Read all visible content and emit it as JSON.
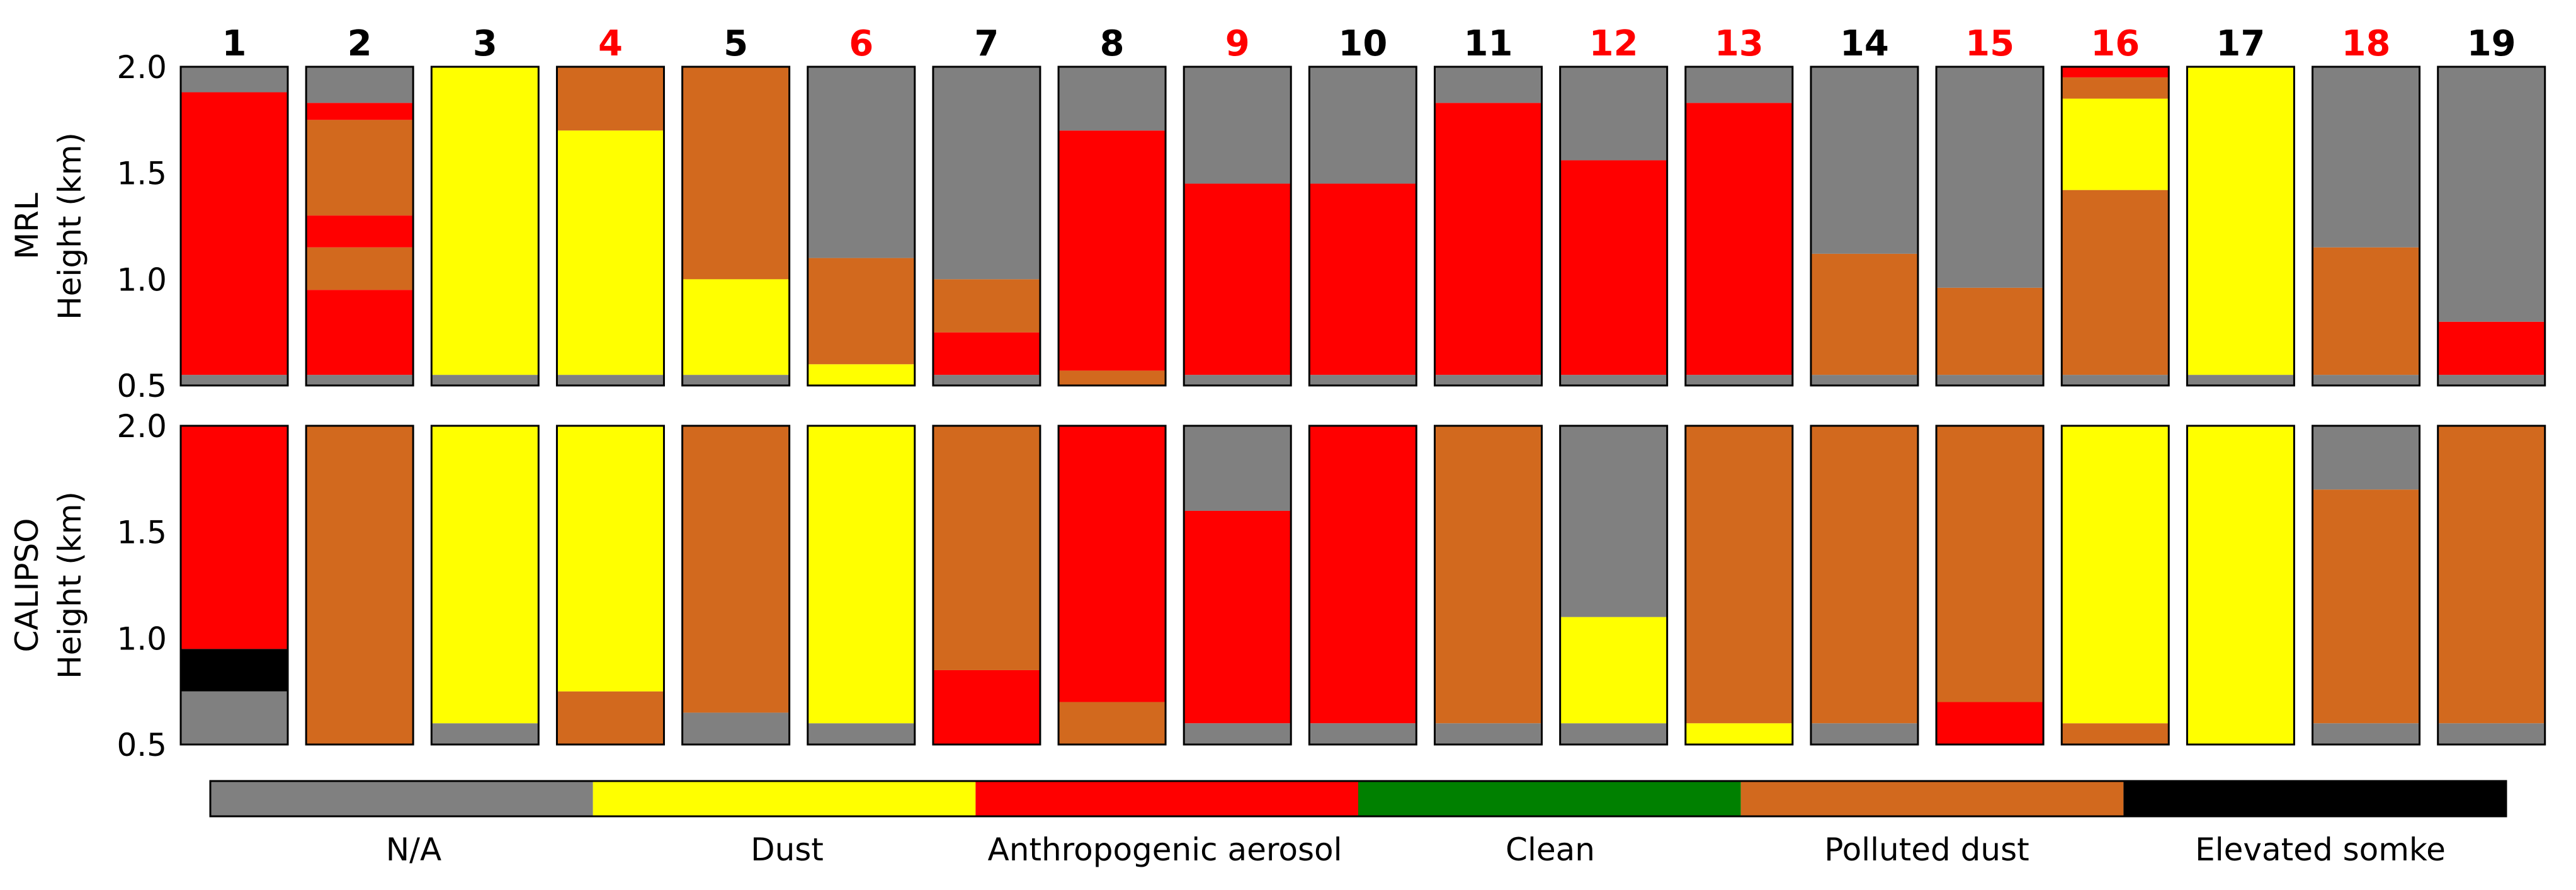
{
  "chart_data": {
    "type": "heatmap",
    "title": "",
    "colors": {
      "na": "#808080",
      "dust": "#ffff00",
      "anthro": "#ff0000",
      "clean": "#008000",
      "polluted": "#d2691e",
      "smoke": "#000000"
    },
    "legend": [
      {
        "key": "na",
        "label": "N/A"
      },
      {
        "key": "dust",
        "label": "Dust"
      },
      {
        "key": "anthro",
        "label": "Anthropogenic aerosol"
      },
      {
        "key": "clean",
        "label": "Clean"
      },
      {
        "key": "polluted",
        "label": "Polluted dust"
      },
      {
        "key": "smoke",
        "label": "Elevated somke"
      }
    ],
    "cases": [
      {
        "label": "1",
        "highlight": false
      },
      {
        "label": "2",
        "highlight": false
      },
      {
        "label": "3",
        "highlight": false
      },
      {
        "label": "4",
        "highlight": true
      },
      {
        "label": "5",
        "highlight": false
      },
      {
        "label": "6",
        "highlight": true
      },
      {
        "label": "7",
        "highlight": false
      },
      {
        "label": "8",
        "highlight": false
      },
      {
        "label": "9",
        "highlight": true
      },
      {
        "label": "10",
        "highlight": false
      },
      {
        "label": "11",
        "highlight": false
      },
      {
        "label": "12",
        "highlight": true
      },
      {
        "label": "13",
        "highlight": true
      },
      {
        "label": "14",
        "highlight": false
      },
      {
        "label": "15",
        "highlight": true
      },
      {
        "label": "16",
        "highlight": true
      },
      {
        "label": "17",
        "highlight": false
      },
      {
        "label": "18",
        "highlight": true
      },
      {
        "label": "19",
        "highlight": false
      }
    ],
    "highlight_color": "#ff0000",
    "normal_color": "#000000",
    "panels": [
      {
        "id": "mrl",
        "ylabel_lines": [
          "MRL",
          "Height (km)"
        ],
        "ylim": [
          0.5,
          2.0
        ],
        "yticks": [
          "0.5",
          "1.0",
          "1.5",
          "2.0"
        ],
        "ytick_values": [
          0.5,
          1.0,
          1.5,
          2.0
        ],
        "profiles": [
          [
            [
              "na",
              0.5,
              0.55
            ],
            [
              "anthro",
              0.55,
              1.88
            ],
            [
              "na",
              1.88,
              2.0
            ]
          ],
          [
            [
              "na",
              0.5,
              0.55
            ],
            [
              "anthro",
              0.55,
              0.95
            ],
            [
              "polluted",
              0.95,
              1.15
            ],
            [
              "anthro",
              1.15,
              1.3
            ],
            [
              "polluted",
              1.3,
              1.75
            ],
            [
              "anthro",
              1.75,
              1.83
            ],
            [
              "na",
              1.83,
              2.0
            ]
          ],
          [
            [
              "na",
              0.5,
              0.55
            ],
            [
              "dust",
              0.55,
              2.0
            ]
          ],
          [
            [
              "na",
              0.5,
              0.55
            ],
            [
              "dust",
              0.55,
              1.7
            ],
            [
              "polluted",
              1.7,
              2.0
            ]
          ],
          [
            [
              "na",
              0.5,
              0.55
            ],
            [
              "dust",
              0.55,
              1.0
            ],
            [
              "polluted",
              1.0,
              2.0
            ]
          ],
          [
            [
              "dust",
              0.5,
              0.6
            ],
            [
              "polluted",
              0.6,
              1.1
            ],
            [
              "na",
              1.1,
              2.0
            ]
          ],
          [
            [
              "na",
              0.5,
              0.55
            ],
            [
              "anthro",
              0.55,
              0.75
            ],
            [
              "polluted",
              0.75,
              1.0
            ],
            [
              "na",
              1.0,
              2.0
            ]
          ],
          [
            [
              "polluted",
              0.5,
              0.57
            ],
            [
              "anthro",
              0.57,
              1.7
            ],
            [
              "na",
              1.7,
              2.0
            ]
          ],
          [
            [
              "na",
              0.5,
              0.55
            ],
            [
              "anthro",
              0.55,
              1.45
            ],
            [
              "na",
              1.45,
              2.0
            ]
          ],
          [
            [
              "na",
              0.5,
              0.55
            ],
            [
              "anthro",
              0.55,
              1.45
            ],
            [
              "na",
              1.45,
              2.0
            ]
          ],
          [
            [
              "na",
              0.5,
              0.55
            ],
            [
              "anthro",
              0.55,
              1.83
            ],
            [
              "na",
              1.83,
              2.0
            ]
          ],
          [
            [
              "na",
              0.5,
              0.55
            ],
            [
              "anthro",
              0.55,
              1.56
            ],
            [
              "na",
              1.56,
              2.0
            ]
          ],
          [
            [
              "na",
              0.5,
              0.55
            ],
            [
              "anthro",
              0.55,
              1.83
            ],
            [
              "na",
              1.83,
              2.0
            ]
          ],
          [
            [
              "na",
              0.5,
              0.55
            ],
            [
              "polluted",
              0.55,
              1.12
            ],
            [
              "na",
              1.12,
              2.0
            ]
          ],
          [
            [
              "na",
              0.5,
              0.55
            ],
            [
              "polluted",
              0.55,
              0.96
            ],
            [
              "na",
              0.96,
              2.0
            ]
          ],
          [
            [
              "na",
              0.5,
              0.55
            ],
            [
              "polluted",
              0.55,
              1.42
            ],
            [
              "dust",
              1.42,
              1.85
            ],
            [
              "polluted",
              1.85,
              1.95
            ],
            [
              "anthro",
              1.95,
              2.0
            ]
          ],
          [
            [
              "na",
              0.5,
              0.55
            ],
            [
              "dust",
              0.55,
              2.0
            ]
          ],
          [
            [
              "na",
              0.5,
              0.55
            ],
            [
              "polluted",
              0.55,
              1.15
            ],
            [
              "na",
              1.15,
              2.0
            ]
          ],
          [
            [
              "na",
              0.5,
              0.55
            ],
            [
              "anthro",
              0.55,
              0.8
            ],
            [
              "na",
              0.8,
              2.0
            ]
          ]
        ]
      },
      {
        "id": "calipso",
        "ylabel_lines": [
          "CALIPSO",
          "Height (km)"
        ],
        "ylim": [
          0.5,
          2.0
        ],
        "yticks": [
          "0.5",
          "1.0",
          "1.5",
          "2.0"
        ],
        "ytick_values": [
          0.5,
          1.0,
          1.5,
          2.0
        ],
        "profiles": [
          [
            [
              "na",
              0.5,
              0.75
            ],
            [
              "smoke",
              0.75,
              0.95
            ],
            [
              "anthro",
              0.95,
              2.0
            ]
          ],
          [
            [
              "polluted",
              0.5,
              2.0
            ]
          ],
          [
            [
              "na",
              0.5,
              0.6
            ],
            [
              "dust",
              0.6,
              2.0
            ]
          ],
          [
            [
              "polluted",
              0.5,
              0.75
            ],
            [
              "dust",
              0.75,
              2.0
            ]
          ],
          [
            [
              "na",
              0.5,
              0.65
            ],
            [
              "polluted",
              0.65,
              2.0
            ]
          ],
          [
            [
              "na",
              0.5,
              0.6
            ],
            [
              "dust",
              0.6,
              2.0
            ]
          ],
          [
            [
              "anthro",
              0.5,
              0.85
            ],
            [
              "polluted",
              0.85,
              2.0
            ]
          ],
          [
            [
              "polluted",
              0.5,
              0.7
            ],
            [
              "anthro",
              0.7,
              2.0
            ]
          ],
          [
            [
              "na",
              0.5,
              0.6
            ],
            [
              "anthro",
              0.6,
              1.6
            ],
            [
              "na",
              1.6,
              2.0
            ]
          ],
          [
            [
              "na",
              0.5,
              0.6
            ],
            [
              "anthro",
              0.6,
              2.0
            ]
          ],
          [
            [
              "na",
              0.5,
              0.6
            ],
            [
              "polluted",
              0.6,
              2.0
            ]
          ],
          [
            [
              "na",
              0.5,
              0.6
            ],
            [
              "dust",
              0.6,
              1.1
            ],
            [
              "na",
              1.1,
              2.0
            ]
          ],
          [
            [
              "dust",
              0.5,
              0.6
            ],
            [
              "polluted",
              0.6,
              2.0
            ]
          ],
          [
            [
              "na",
              0.5,
              0.6
            ],
            [
              "polluted",
              0.6,
              2.0
            ]
          ],
          [
            [
              "anthro",
              0.5,
              0.7
            ],
            [
              "polluted",
              0.7,
              2.0
            ]
          ],
          [
            [
              "polluted",
              0.5,
              0.6
            ],
            [
              "dust",
              0.6,
              2.0
            ]
          ],
          [
            [
              "dust",
              0.5,
              2.0
            ]
          ],
          [
            [
              "na",
              0.5,
              0.6
            ],
            [
              "polluted",
              0.6,
              1.7
            ],
            [
              "na",
              1.7,
              2.0
            ]
          ],
          [
            [
              "na",
              0.5,
              0.6
            ],
            [
              "polluted",
              0.6,
              2.0
            ]
          ]
        ]
      }
    ]
  }
}
